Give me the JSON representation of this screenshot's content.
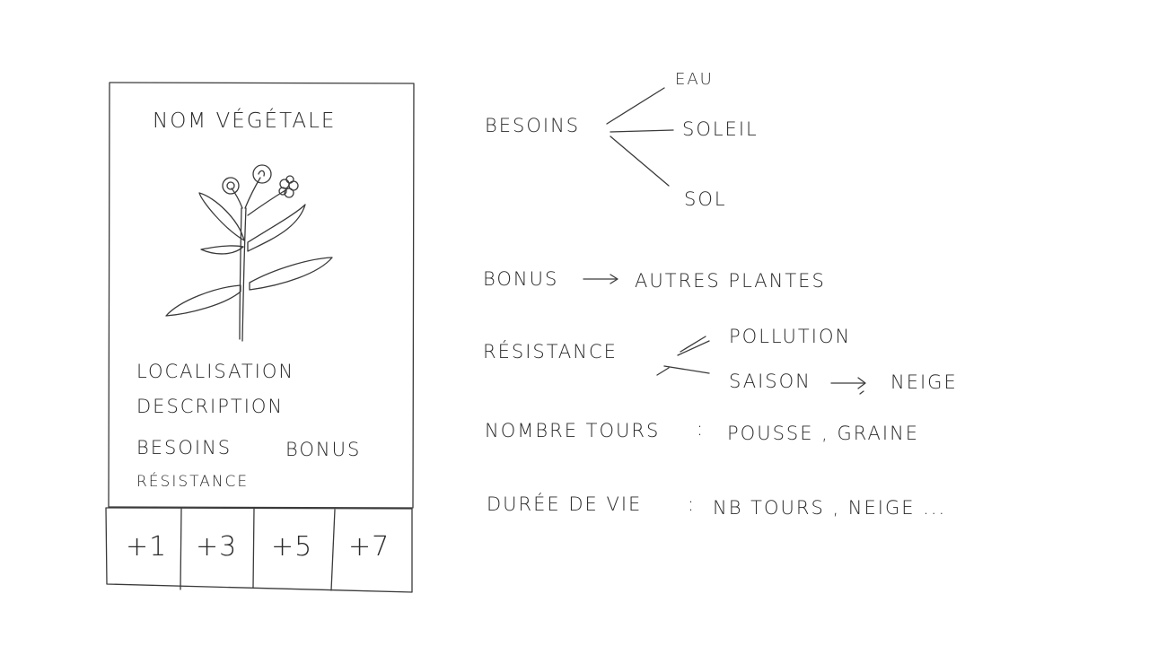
{
  "card": {
    "title": "NOM VÉGÉTALE",
    "illustration": "plant-with-flowers",
    "fields": [
      "LOCALISATION",
      "DESCRIPTION",
      "BESOINS",
      "BONUS",
      "RÉSISTANCE"
    ],
    "bonus_cells": [
      "+1",
      "+3",
      "+5",
      "+7"
    ]
  },
  "notes": {
    "besoins": {
      "label": "BESOINS",
      "branches": [
        "EAU",
        "SOLEIL",
        "SOL"
      ]
    },
    "bonus": {
      "label": "BONUS",
      "target": "AUTRES PLANTES"
    },
    "resistance": {
      "label": "RÉSISTANCE",
      "branches": [
        "POLLUTION",
        "SAISON"
      ],
      "saison_target": "NEIGE"
    },
    "nombre_tours": {
      "label": "NOMBRE TOURS",
      "separator": ":",
      "values": "POUSSE , GRAINE"
    },
    "duree_de_vie": {
      "label": "DURÉE DE VIE",
      "separator": ":",
      "values": "NB TOURS , NEIGE ..."
    }
  }
}
